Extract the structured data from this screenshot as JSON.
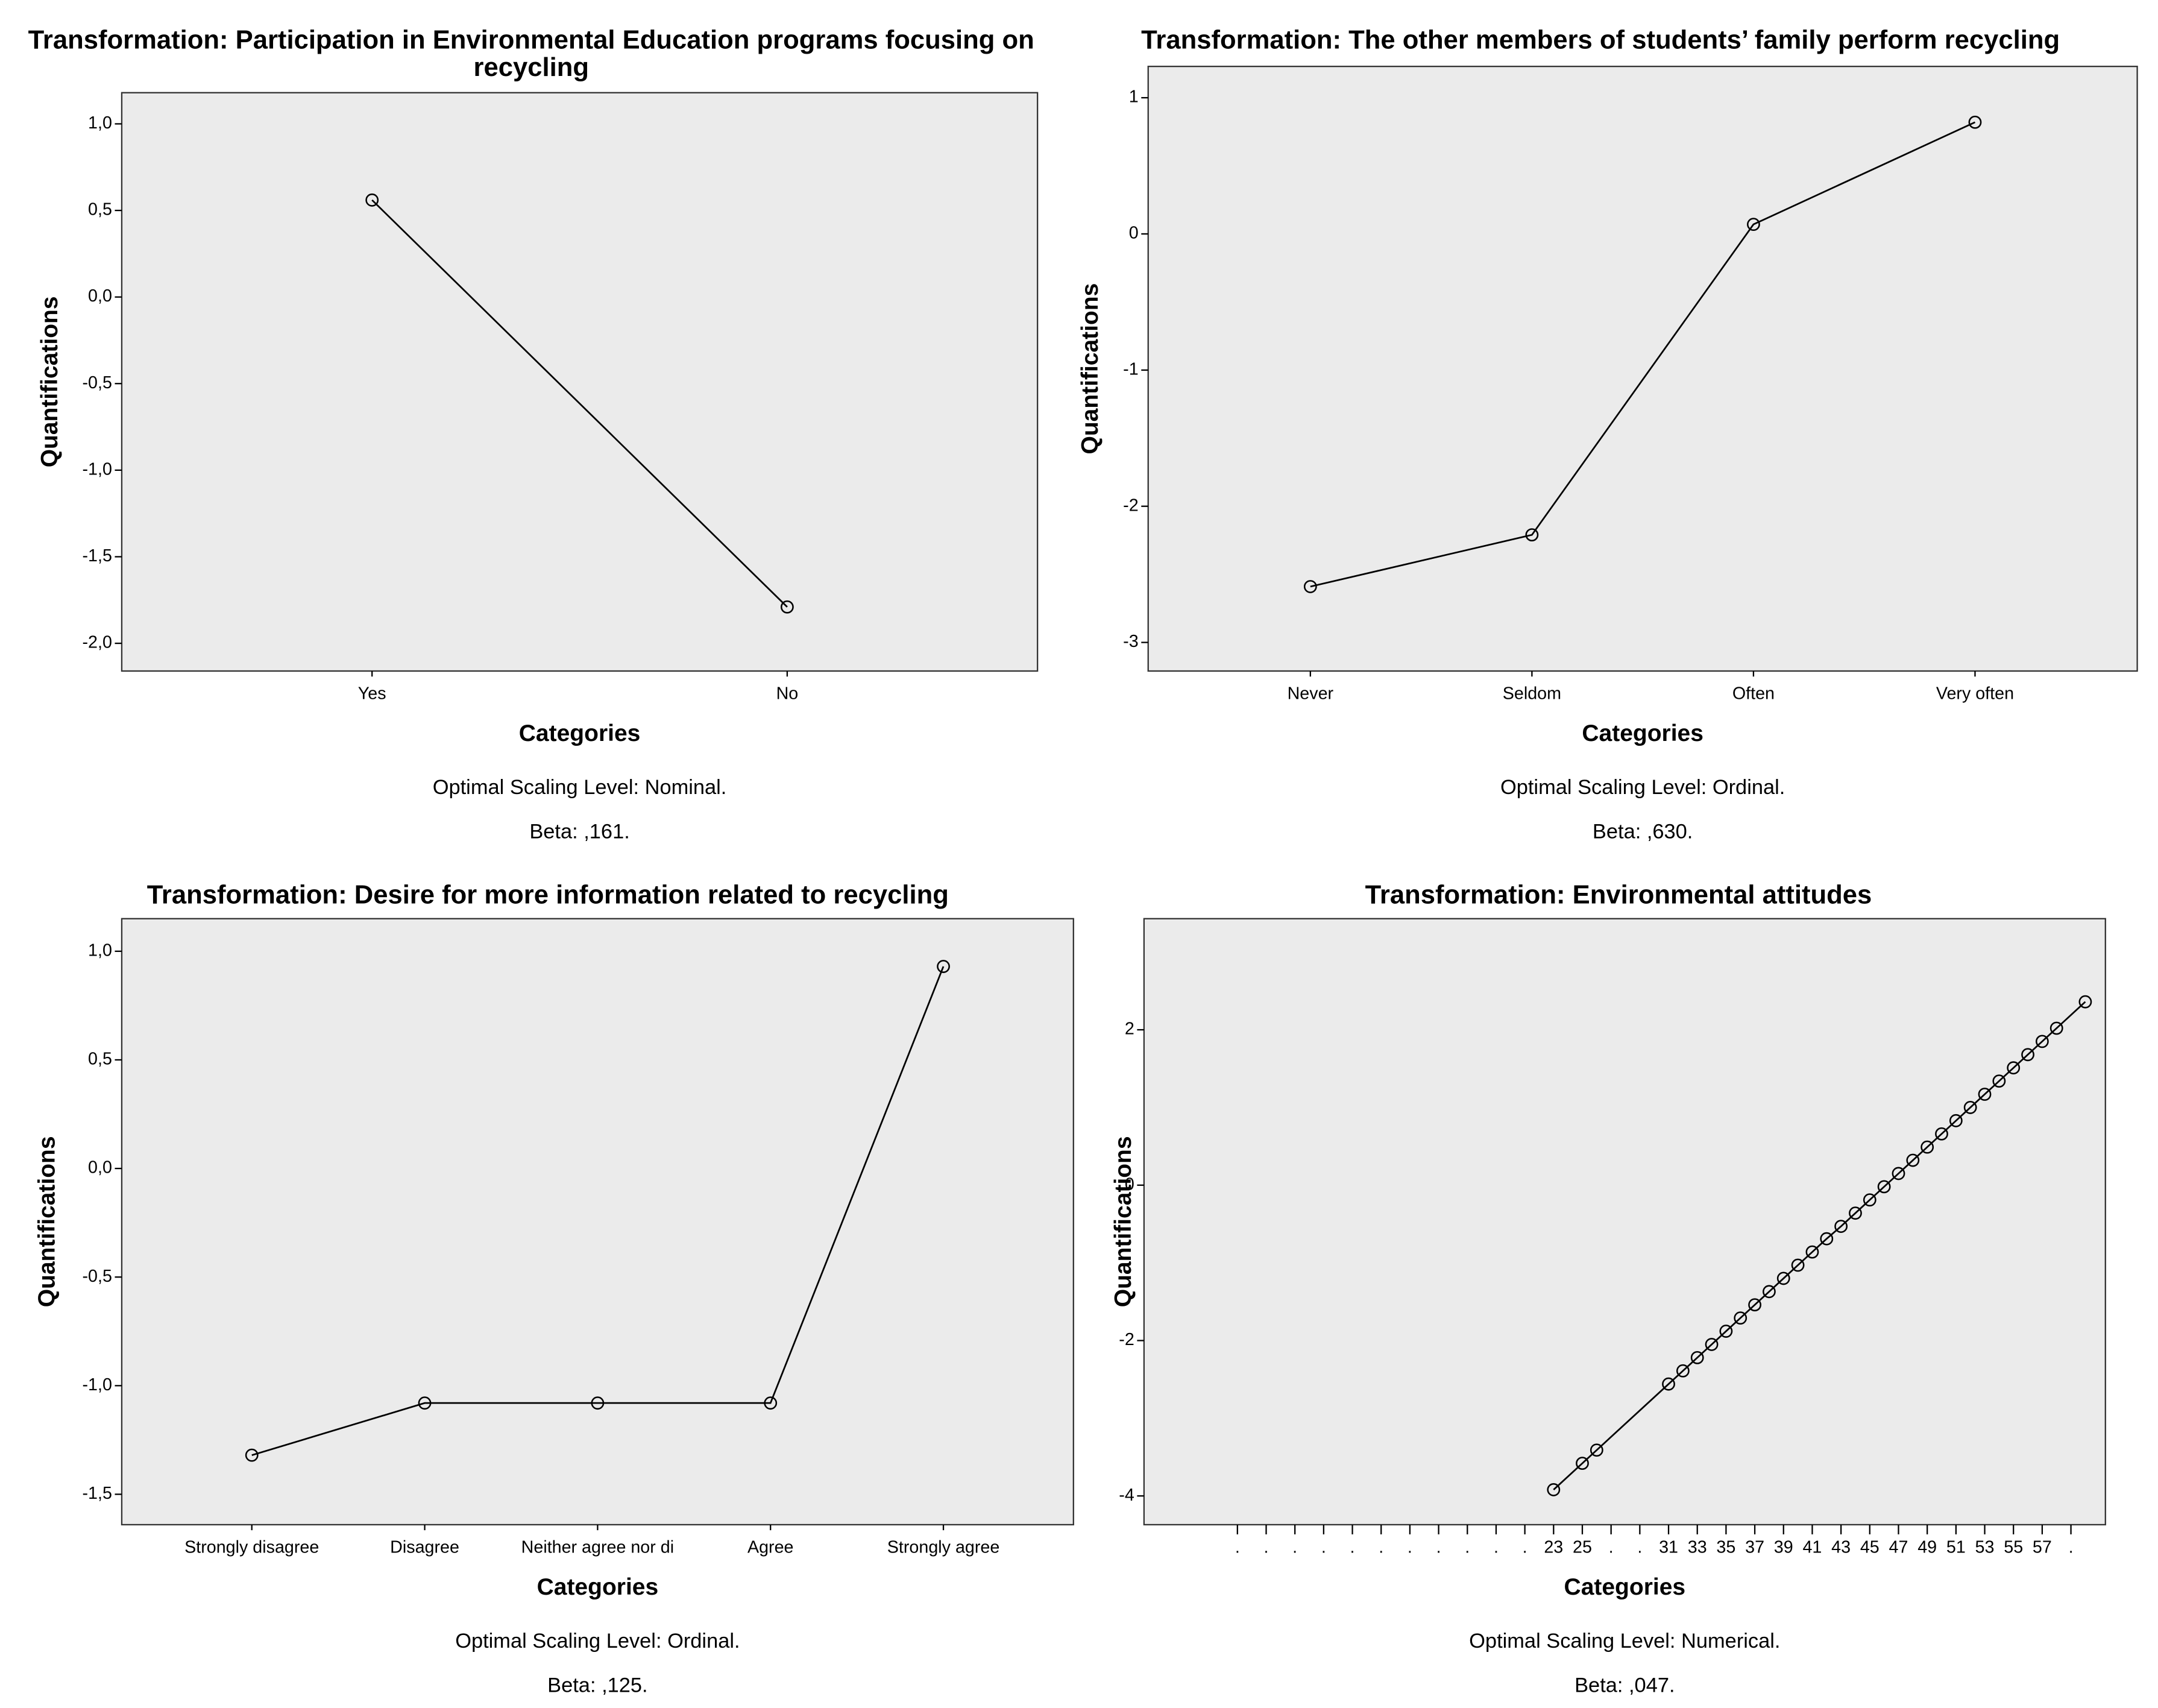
{
  "chart_data": [
    {
      "type": "line",
      "title": "Transformation: Participation in Environmental Education programs focusing on recycling",
      "x_label": "Categories",
      "y_label": "Quantifications",
      "notes": [
        "Optimal Scaling Level: Nominal.",
        "Beta: ,161."
      ],
      "categories": [
        "Yes",
        "No"
      ],
      "values": [
        0.56,
        -1.79
      ],
      "ylim": [
        -2.16,
        1.18
      ],
      "yticks": [
        {
          "value": 1.0,
          "label": "1,0"
        },
        {
          "value": 0.5,
          "label": "0,5"
        },
        {
          "value": 0.0,
          "label": "0,0"
        },
        {
          "value": -0.5,
          "label": "-0,5"
        },
        {
          "value": -1.0,
          "label": "-1,0"
        },
        {
          "value": -1.5,
          "label": "-1,5"
        },
        {
          "value": -2.0,
          "label": "-2,0"
        }
      ]
    },
    {
      "type": "line",
      "title": "Transformation: The other members of students’ family perform recycling",
      "x_label": "Categories",
      "y_label": "Quantifications",
      "notes": [
        "Optimal Scaling Level: Ordinal.",
        "Beta: ,630."
      ],
      "categories": [
        "Never",
        "Seldom",
        "Often",
        "Very often"
      ],
      "values": [
        -2.59,
        -2.21,
        0.07,
        0.82
      ],
      "ylim": [
        -3.21,
        1.23
      ],
      "yticks": [
        1,
        0,
        -1,
        -2,
        -3
      ]
    },
    {
      "type": "line",
      "title": "Transformation: Desire for more information related to recycling",
      "x_label": "Categories",
      "y_label": "Quantifications",
      "notes": [
        "Optimal Scaling Level: Ordinal.",
        "Beta: ,125."
      ],
      "categories": [
        "Strongly disagree",
        "Disagree",
        "Neither agree nor di",
        "Agree",
        "Strongly agree"
      ],
      "values": [
        -1.32,
        -1.08,
        -1.08,
        -1.08,
        0.93
      ],
      "ylim": [
        -1.64,
        1.15
      ],
      "yticks": [
        {
          "value": 1.0,
          "label": "1,0"
        },
        {
          "value": 0.5,
          "label": "0,5"
        },
        {
          "value": 0.0,
          "label": "0,0"
        },
        {
          "value": -0.5,
          "label": "-0,5"
        },
        {
          "value": -1.0,
          "label": "-1,0"
        },
        {
          "value": -1.5,
          "label": "-1,5"
        }
      ]
    },
    {
      "type": "line",
      "title": "Transformation: Environmental attitudes",
      "x_label": "Categories",
      "y_label": "Quantifications",
      "notes": [
        "Optimal Scaling Level: Numerical.",
        "Beta: ,047."
      ],
      "x": [
        23,
        25,
        26,
        31,
        32,
        33,
        34,
        35,
        36,
        37,
        38,
        39,
        40,
        41,
        42,
        43,
        44,
        45,
        46,
        47,
        48,
        49,
        50,
        51,
        52,
        53,
        54,
        55,
        56,
        57,
        58,
        60
      ],
      "values": [
        -3.92,
        -3.58,
        -3.41,
        -2.56,
        -2.39,
        -2.22,
        -2.05,
        -1.88,
        -1.71,
        -1.54,
        -1.37,
        -1.2,
        -1.03,
        -0.86,
        -0.69,
        -0.53,
        -0.36,
        -0.19,
        -0.02,
        0.15,
        0.32,
        0.49,
        0.66,
        0.83,
        1.0,
        1.17,
        1.34,
        1.51,
        1.68,
        1.85,
        2.02,
        2.36
      ],
      "xlim": [
        -5.5,
        61.4
      ],
      "ylim": [
        -4.37,
        3.43
      ],
      "xticks": [
        {
          "value": 1,
          "label": "."
        },
        {
          "value": 3,
          "label": "."
        },
        {
          "value": 5,
          "label": "."
        },
        {
          "value": 7,
          "label": "."
        },
        {
          "value": 9,
          "label": "."
        },
        {
          "value": 11,
          "label": "."
        },
        {
          "value": 13,
          "label": "."
        },
        {
          "value": 15,
          "label": "."
        },
        {
          "value": 17,
          "label": "."
        },
        {
          "value": 19,
          "label": "."
        },
        {
          "value": 21,
          "label": "."
        },
        23,
        25,
        {
          "value": 27,
          "label": "."
        },
        {
          "value": 29,
          "label": "."
        },
        31,
        33,
        35,
        37,
        39,
        41,
        43,
        45,
        47,
        49,
        51,
        53,
        55,
        57,
        {
          "value": 59,
          "label": "."
        }
      ],
      "yticks": [
        2,
        0,
        -2,
        -4
      ]
    }
  ]
}
